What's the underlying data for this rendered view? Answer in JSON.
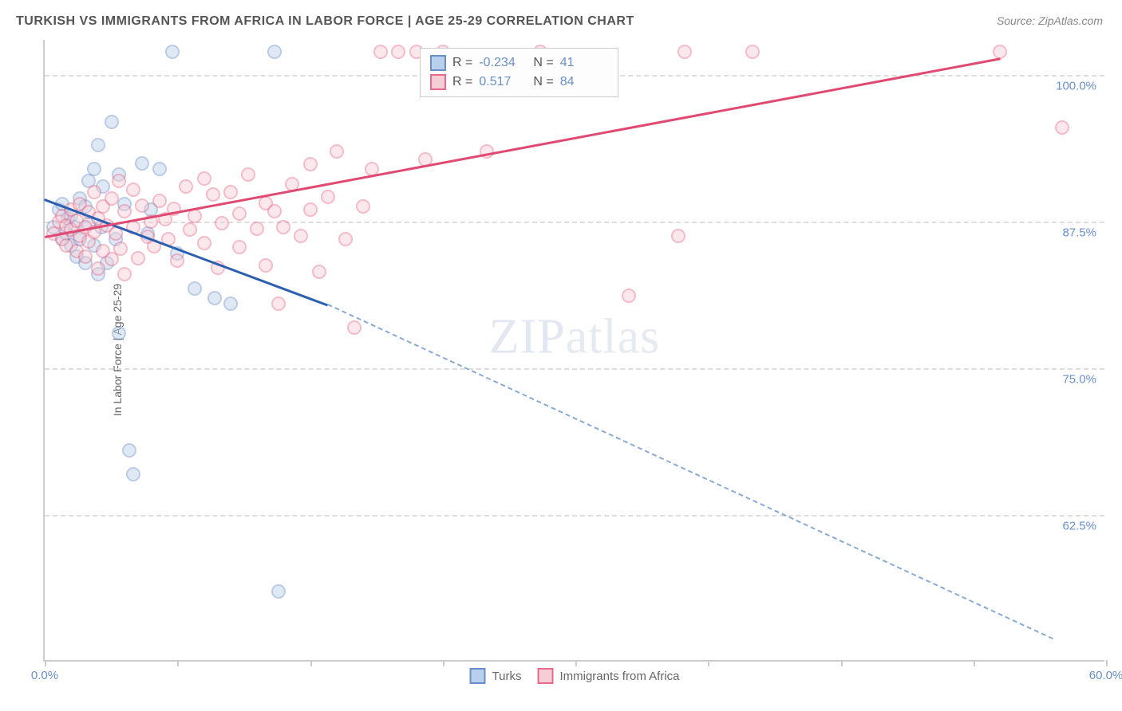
{
  "title": "TURKISH VS IMMIGRANTS FROM AFRICA IN LABOR FORCE | AGE 25-29 CORRELATION CHART",
  "source": "Source: ZipAtlas.com",
  "ylabel": "In Labor Force | Age 25-29",
  "watermark_bold": "ZIP",
  "watermark_thin": "atlas",
  "chart": {
    "type": "scatter",
    "background_color": "#ffffff",
    "grid_color": "#dddddd",
    "axis_color": "#cccccc",
    "text_color": "#666666",
    "tick_label_color": "#6a8fc7",
    "title_fontsize": 16,
    "label_fontsize": 14,
    "tick_fontsize": 15,
    "xlim": [
      0,
      60
    ],
    "ylim": [
      50,
      103
    ],
    "xticks": [
      0,
      7.5,
      15,
      22.5,
      30,
      37.5,
      45,
      52.5,
      60
    ],
    "xtick_labels": {
      "0": "0.0%",
      "60": "60.0%"
    },
    "yticks": [
      62.5,
      75.0,
      87.5,
      100.0
    ],
    "ytick_labels": [
      "62.5%",
      "75.0%",
      "87.5%",
      "100.0%"
    ],
    "marker_radius": 9,
    "marker_opacity": 0.45,
    "line_width_solid": 3,
    "line_width_dashed": 2
  },
  "series": [
    {
      "name": "Turks",
      "marker_fill": "#b9d0ec",
      "marker_stroke": "#6a8fc7",
      "line_color": "#2b5fb0",
      "dashed_line_color": "#8aa9d4",
      "r_label": "R =",
      "r_value": "-0.234",
      "n_label": "N =",
      "n_value": "41",
      "trend": {
        "x1": 0,
        "y1": 89.5,
        "x2_solid": 16,
        "y2_solid": 80.5,
        "x2_dashed": 57,
        "y2_dashed": 52
      },
      "points": [
        [
          0.5,
          87
        ],
        [
          0.8,
          88.5
        ],
        [
          1,
          86
        ],
        [
          1,
          89
        ],
        [
          1.2,
          86.5
        ],
        [
          1.3,
          87.8
        ],
        [
          1.5,
          85.5
        ],
        [
          1.5,
          88
        ],
        [
          1.7,
          87
        ],
        [
          1.8,
          84.5
        ],
        [
          2,
          89.5
        ],
        [
          2,
          86
        ],
        [
          2.3,
          88.8
        ],
        [
          2.3,
          84
        ],
        [
          2.5,
          91
        ],
        [
          2.5,
          87.3
        ],
        [
          2.8,
          92
        ],
        [
          2.8,
          85.5
        ],
        [
          3,
          94
        ],
        [
          3.2,
          87
        ],
        [
          3.3,
          90.5
        ],
        [
          3.5,
          84
        ],
        [
          3.8,
          96
        ],
        [
          4,
          86
        ],
        [
          4.2,
          91.5
        ],
        [
          4.2,
          78
        ],
        [
          4.5,
          89
        ],
        [
          4.8,
          68
        ],
        [
          5,
          66
        ],
        [
          5.5,
          92.5
        ],
        [
          5.8,
          86.5
        ],
        [
          6,
          88.5
        ],
        [
          6.5,
          92
        ],
        [
          7.2,
          102
        ],
        [
          7.5,
          84.8
        ],
        [
          8.5,
          81.8
        ],
        [
          9.6,
          81
        ],
        [
          13,
          102
        ],
        [
          13.2,
          56
        ],
        [
          10.5,
          80.5
        ],
        [
          3,
          83
        ]
      ]
    },
    {
      "name": "Immigrants from Africa",
      "marker_fill": "#f4cdd6",
      "marker_stroke": "#e86a8a",
      "line_color": "#e04a72",
      "r_label": "R =",
      "r_value": "0.517",
      "n_label": "N =",
      "n_value": "84",
      "trend": {
        "x1": 0,
        "y1": 86.3,
        "x2_solid": 54,
        "y2_solid": 101.5
      },
      "points": [
        [
          0.5,
          86.5
        ],
        [
          0.8,
          87.5
        ],
        [
          1,
          86
        ],
        [
          1,
          88
        ],
        [
          1.2,
          85.5
        ],
        [
          1.2,
          87.2
        ],
        [
          1.5,
          86.8
        ],
        [
          1.5,
          88.5
        ],
        [
          1.8,
          85
        ],
        [
          1.8,
          87.6
        ],
        [
          2,
          86.3
        ],
        [
          2,
          89
        ],
        [
          2.3,
          84.5
        ],
        [
          2.3,
          87
        ],
        [
          2.5,
          88.3
        ],
        [
          2.5,
          85.8
        ],
        [
          2.8,
          90
        ],
        [
          2.8,
          86.6
        ],
        [
          3,
          83.5
        ],
        [
          3,
          87.8
        ],
        [
          3.3,
          88.8
        ],
        [
          3.3,
          85
        ],
        [
          3.5,
          87.2
        ],
        [
          3.8,
          89.5
        ],
        [
          3.8,
          84.3
        ],
        [
          4,
          86.5
        ],
        [
          4.2,
          91
        ],
        [
          4.3,
          85.2
        ],
        [
          4.5,
          88.4
        ],
        [
          4.5,
          83
        ],
        [
          5,
          87
        ],
        [
          5,
          90.2
        ],
        [
          5.3,
          84.4
        ],
        [
          5.5,
          88.9
        ],
        [
          5.8,
          86.2
        ],
        [
          6,
          87.5
        ],
        [
          6.2,
          85.4
        ],
        [
          6.5,
          89.3
        ],
        [
          6.8,
          87.7
        ],
        [
          7,
          86
        ],
        [
          7.3,
          88.6
        ],
        [
          7.5,
          84.2
        ],
        [
          8,
          90.5
        ],
        [
          8.2,
          86.8
        ],
        [
          8.5,
          88
        ],
        [
          9,
          91.2
        ],
        [
          9,
          85.7
        ],
        [
          9.5,
          89.8
        ],
        [
          9.8,
          83.6
        ],
        [
          10,
          87.4
        ],
        [
          10.5,
          90
        ],
        [
          11,
          85.3
        ],
        [
          11,
          88.2
        ],
        [
          11.5,
          91.5
        ],
        [
          12,
          86.9
        ],
        [
          12.5,
          89.1
        ],
        [
          12.5,
          83.8
        ],
        [
          13,
          88.4
        ],
        [
          13.2,
          80.5
        ],
        [
          13.5,
          87
        ],
        [
          14,
          90.7
        ],
        [
          14.5,
          86.3
        ],
        [
          15,
          92.4
        ],
        [
          15,
          88.5
        ],
        [
          15.5,
          83.2
        ],
        [
          16,
          89.6
        ],
        [
          16.5,
          93.5
        ],
        [
          17,
          86
        ],
        [
          17.5,
          78.5
        ],
        [
          18,
          88.8
        ],
        [
          18.5,
          92
        ],
        [
          19,
          102
        ],
        [
          20,
          102
        ],
        [
          21,
          102
        ],
        [
          21.5,
          92.8
        ],
        [
          22.5,
          102
        ],
        [
          25,
          93.5
        ],
        [
          28,
          102
        ],
        [
          33,
          81.2
        ],
        [
          35.8,
          86.3
        ],
        [
          36.2,
          102
        ],
        [
          40,
          102
        ],
        [
          54,
          102
        ],
        [
          57.5,
          95.5
        ]
      ]
    }
  ]
}
